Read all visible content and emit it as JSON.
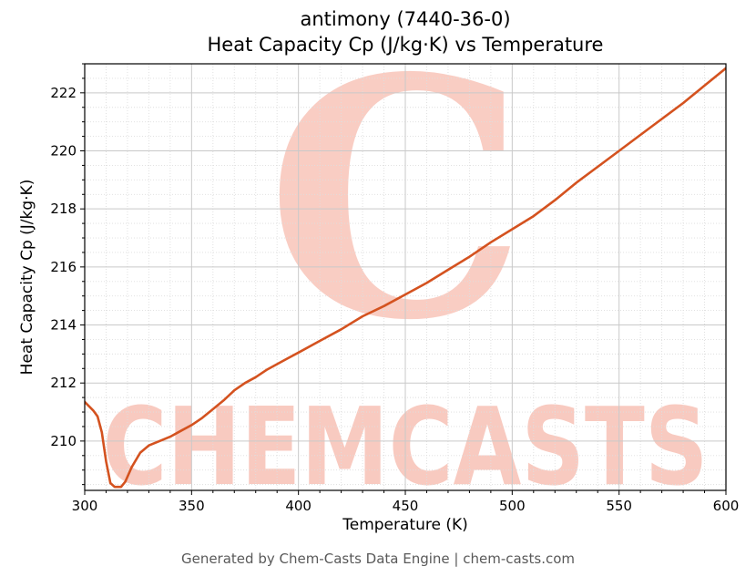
{
  "page": {
    "footer": "Generated by Chem-Casts Data Engine | chem-casts.com"
  },
  "chart_data": {
    "type": "line",
    "title_line1": "antimony (7440-36-0)",
    "title_line2": "Heat Capacity Cp (J/kg·K) vs Temperature",
    "xlabel": "Temperature (K)",
    "ylabel": "Heat Capacity Cp (J/kg·K)",
    "xlim": [
      300,
      600
    ],
    "ylim": [
      208.3,
      223.0
    ],
    "xticks_major": [
      300,
      350,
      400,
      450,
      500,
      550,
      600
    ],
    "yticks_major": [
      210,
      212,
      214,
      216,
      218,
      220,
      222
    ],
    "x_minor_step": 10,
    "y_minor_step": 0.5,
    "grid": true,
    "legend": "none",
    "line_color": "#d4521f",
    "line_width": 2.6,
    "series": [
      {
        "name": "Heat Capacity Cp",
        "points": [
          [
            300,
            211.35
          ],
          [
            304,
            211.05
          ],
          [
            306,
            210.85
          ],
          [
            308,
            210.3
          ],
          [
            310,
            209.3
          ],
          [
            312,
            208.55
          ],
          [
            314,
            208.42
          ],
          [
            317,
            208.42
          ],
          [
            319,
            208.6
          ],
          [
            322,
            209.1
          ],
          [
            326,
            209.6
          ],
          [
            330,
            209.85
          ],
          [
            335,
            210.0
          ],
          [
            340,
            210.15
          ],
          [
            345,
            210.35
          ],
          [
            350,
            210.55
          ],
          [
            355,
            210.8
          ],
          [
            360,
            211.1
          ],
          [
            365,
            211.4
          ],
          [
            370,
            211.75
          ],
          [
            375,
            212.0
          ],
          [
            380,
            212.2
          ],
          [
            385,
            212.45
          ],
          [
            390,
            212.65
          ],
          [
            395,
            212.85
          ],
          [
            400,
            213.05
          ],
          [
            410,
            213.45
          ],
          [
            420,
            213.85
          ],
          [
            430,
            214.3
          ],
          [
            440,
            214.65
          ],
          [
            450,
            215.05
          ],
          [
            460,
            215.45
          ],
          [
            470,
            215.9
          ],
          [
            480,
            216.35
          ],
          [
            490,
            216.85
          ],
          [
            500,
            217.3
          ],
          [
            510,
            217.75
          ],
          [
            520,
            218.3
          ],
          [
            530,
            218.9
          ],
          [
            540,
            219.45
          ],
          [
            550,
            220.0
          ],
          [
            560,
            220.55
          ],
          [
            570,
            221.1
          ],
          [
            580,
            221.65
          ],
          [
            590,
            222.25
          ],
          [
            600,
            222.85
          ]
        ]
      }
    ],
    "watermark": {
      "letter": "C",
      "text": "CHEMCASTS",
      "color": "#ee6e52"
    }
  }
}
